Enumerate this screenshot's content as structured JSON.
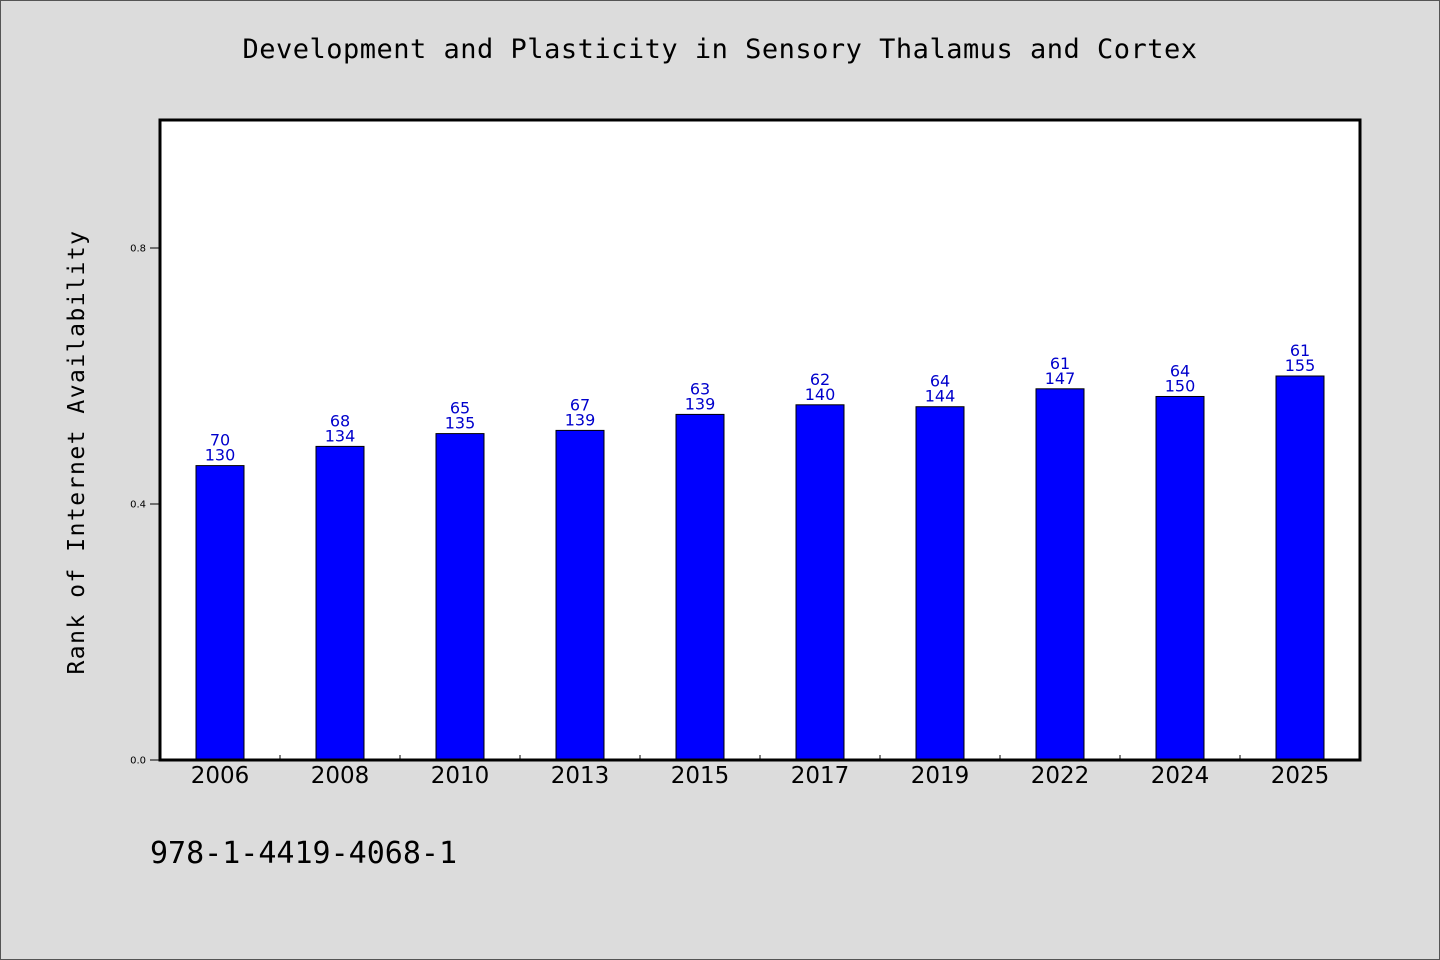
{
  "chart_data": {
    "type": "bar",
    "title": "Development and Plasticity in Sensory Thalamus and Cortex",
    "xlabel": "",
    "ylabel": "Rank of Internet Availability",
    "ylim": [
      0,
      1.0
    ],
    "yticks": [
      0.0,
      0.4,
      0.8
    ],
    "ytick_labels": [
      "0.0",
      "0.4",
      "0.8"
    ],
    "categories": [
      "2006",
      "2008",
      "2010",
      "2013",
      "2015",
      "2017",
      "2019",
      "2022",
      "2024",
      "2025"
    ],
    "values": [
      0.46,
      0.49,
      0.51,
      0.515,
      0.54,
      0.555,
      0.552,
      0.58,
      0.568,
      0.6
    ],
    "bar_labels_top": [
      "70",
      "68",
      "65",
      "67",
      "63",
      "62",
      "64",
      "61",
      "64",
      "61"
    ],
    "bar_labels_bottom": [
      "130",
      "134",
      "135",
      "139",
      "139",
      "140",
      "144",
      "147",
      "150",
      "155"
    ],
    "bar_color": "#0000ff",
    "label_color": "#0000cc",
    "grid": false,
    "legend": "none"
  },
  "footnote": "978-1-4419-4068-1"
}
